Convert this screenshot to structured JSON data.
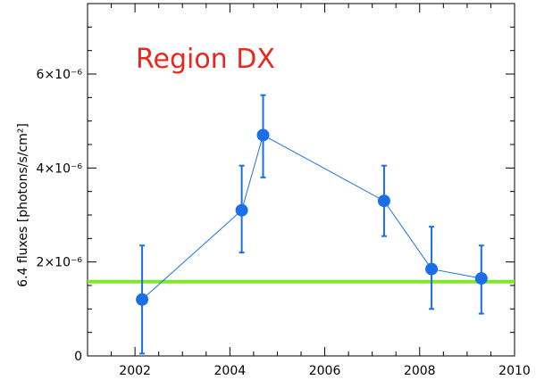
{
  "chart_data": {
    "type": "scatter",
    "title": "",
    "annotation": "Region DX",
    "annotation_color": "#e8281e",
    "xlabel": "",
    "ylabel": "6.4 fluxes [photons/s/cm²]",
    "xlim": [
      2001,
      2010
    ],
    "ylim": [
      0,
      7.5e-06
    ],
    "x_ticks": [
      {
        "value": 2002,
        "label": "2002"
      },
      {
        "value": 2004,
        "label": "2004"
      },
      {
        "value": 2006,
        "label": "2006"
      },
      {
        "value": 2008,
        "label": "2008"
      },
      {
        "value": 2010,
        "label": "2010"
      }
    ],
    "y_ticks": [
      {
        "value": 0,
        "label": "0"
      },
      {
        "value": 2e-06,
        "label": "2×10⁻⁶"
      },
      {
        "value": 4e-06,
        "label": "4×10⁻⁶"
      },
      {
        "value": 6e-06,
        "label": "6×10⁻⁶"
      }
    ],
    "series": [
      {
        "color": "#1a6fe8",
        "x": [
          2002.15,
          2004.25,
          2004.7,
          2007.25,
          2008.25,
          2009.3
        ],
        "y": [
          1.2e-06,
          3.1e-06,
          4.7e-06,
          3.3e-06,
          1.85e-06,
          1.65e-06
        ],
        "y_lower": [
          5e-08,
          2.2e-06,
          3.8e-06,
          2.55e-06,
          1e-06,
          9e-07
        ],
        "y_upper": [
          2.35e-06,
          4.05e-06,
          5.55e-06,
          4.05e-06,
          2.75e-06,
          2.35e-06
        ]
      }
    ],
    "reference_line": {
      "y": 1.58e-06,
      "color": "#7ee82a"
    },
    "grid": false
  }
}
